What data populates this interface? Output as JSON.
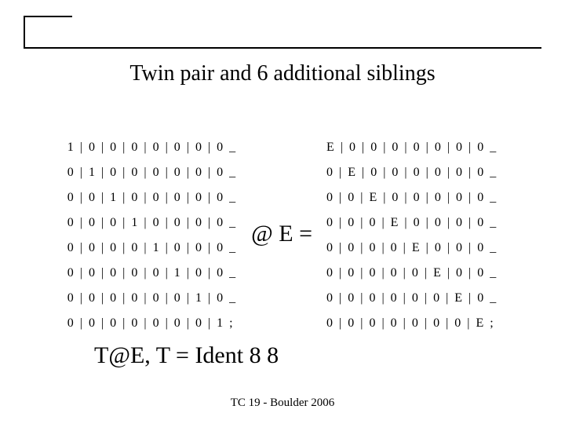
{
  "title": "Twin pair and 6 additional siblings",
  "left_matrix": [
    "1 | 0 | 0 | 0 | 0 | 0 | 0 | 0 _",
    "0 | 1 | 0 | 0 | 0 | 0 | 0 | 0 _",
    "0 | 0 | 1 | 0 | 0 | 0 | 0 | 0 _",
    "0 | 0 | 0 | 1 | 0 | 0 | 0 | 0 _",
    "0 | 0 | 0 | 0 | 1 | 0 | 0 | 0 _",
    "0 | 0 | 0 | 0 | 0 | 1 | 0 | 0 _",
    "0 | 0 | 0 | 0 | 0 | 0 | 1 | 0 _",
    "0 | 0 | 0 | 0 | 0 | 0 | 0 | 1 ;"
  ],
  "operator": "@  E =",
  "right_matrix": [
    "E | 0 | 0 | 0 | 0 | 0 | 0 | 0 _",
    "0 | E | 0 | 0 | 0 | 0 | 0 | 0 _",
    "0 | 0 | E | 0 | 0 | 0 | 0 | 0 _",
    "0 | 0 | 0 | E | 0 | 0 | 0 | 0 _",
    "0 | 0 | 0 | 0 | E | 0 | 0 | 0 _",
    "0 | 0 | 0 | 0 | 0 | E | 0 | 0 _",
    "0 | 0 | 0 | 0 | 0 | 0 | E | 0 _",
    "0 | 0 | 0 | 0 | 0 | 0 | 0 | E ;"
  ],
  "formula": "T@E, T = Ident 8 8",
  "footer": "TC 19 - Boulder 2006",
  "colors": {
    "background": "#ffffff",
    "text": "#000000",
    "rule": "#000000"
  },
  "fontsize": {
    "title": 28,
    "matrix": 16,
    "operator": 30,
    "formula": 30,
    "footer": 15
  }
}
